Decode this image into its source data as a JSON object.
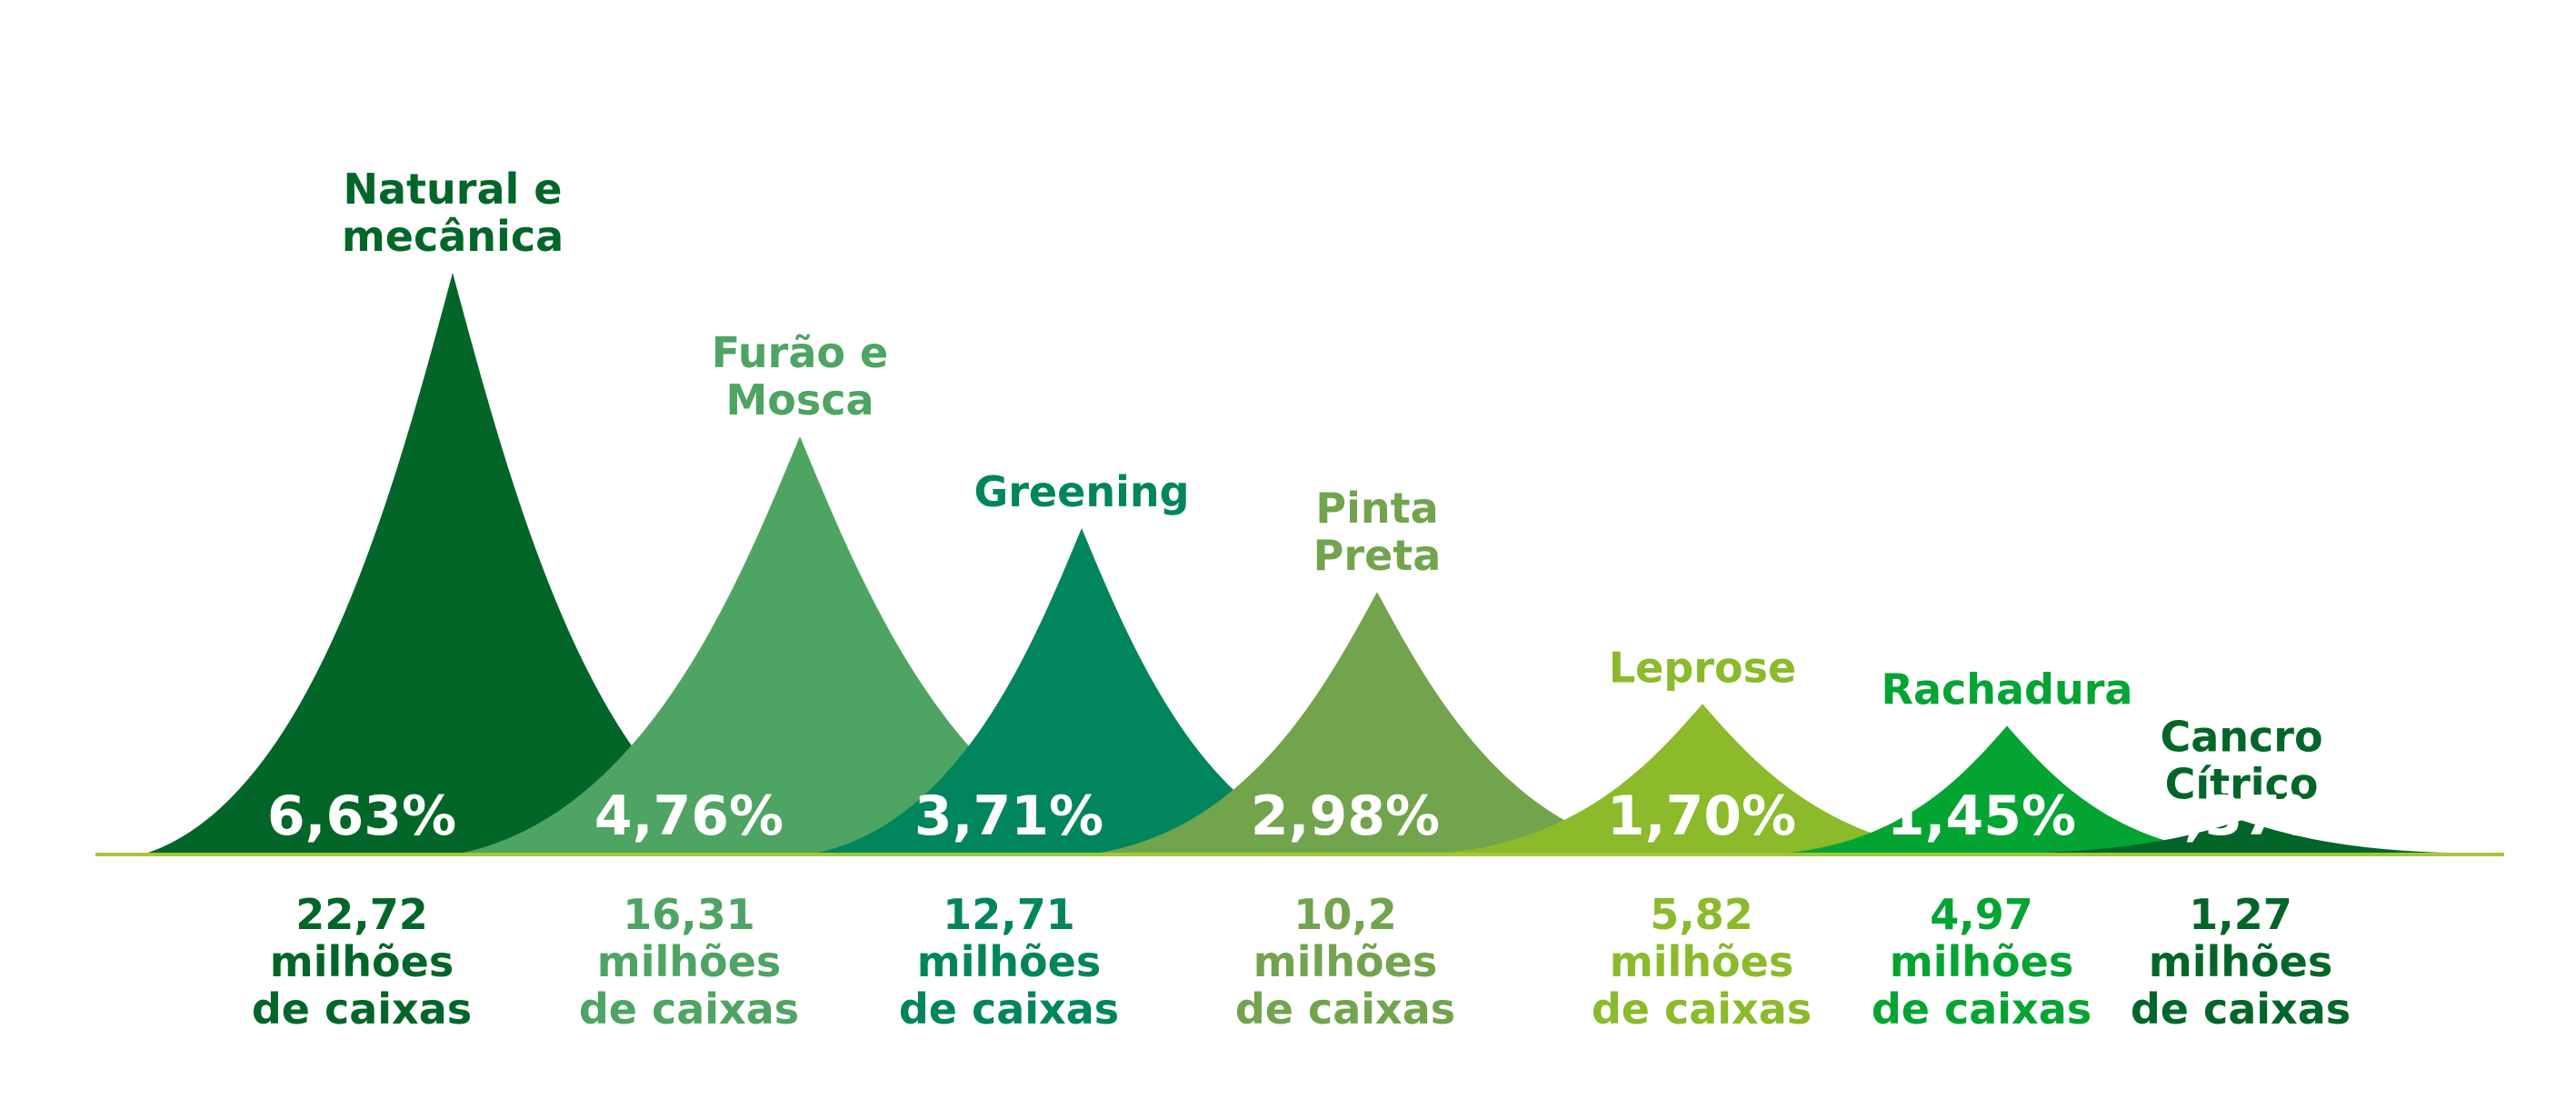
{
  "chart_data": {
    "type": "bar",
    "categories": [
      [
        "Natural e",
        "mecânica"
      ],
      [
        "Furão e",
        "Mosca"
      ],
      [
        "Greening"
      ],
      [
        "Pinta",
        "Preta"
      ],
      [
        "Leprose"
      ],
      [
        "Rachadura"
      ],
      [
        "Cancro",
        "Cítrico"
      ]
    ],
    "values": [
      6.63,
      4.76,
      3.71,
      2.98,
      1.7,
      1.45,
      0.37
    ],
    "value_labels": [
      "6,63%",
      "4,76%",
      "3,71%",
      "2,98%",
      "1,70%",
      "1,45%",
      "0,37%"
    ],
    "volume_labels": [
      [
        "22,72",
        "milhões",
        "de caixas"
      ],
      [
        "16,31",
        "milhões",
        "de caixas"
      ],
      [
        "12,71",
        "milhões",
        "de caixas"
      ],
      [
        "10,2",
        "milhões",
        "de caixas"
      ],
      [
        "5,82",
        "milhões",
        "de caixas"
      ],
      [
        "4,97",
        "milhões",
        "de caixas"
      ],
      [
        "1,27",
        "milhões",
        "de caixas"
      ]
    ],
    "colors": [
      "#036629",
      "#4ea462",
      "#00855d",
      "#71a44d",
      "#8bba2a",
      "#04a433",
      "#036629"
    ],
    "baseline_color": "#a5c63a",
    "ylim": [
      0,
      6.63
    ],
    "grid": false,
    "legend": "none"
  }
}
